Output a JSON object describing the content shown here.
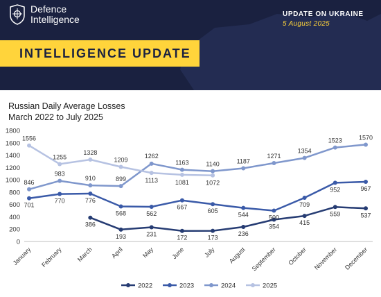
{
  "header": {
    "org_line1": "Defence",
    "org_line2": "Intelligence",
    "update_title": "UPDATE ON UKRAINE",
    "update_date": "5 August 2025",
    "banner_text": "INTELLIGENCE UPDATE",
    "banner_color": "#1a2140",
    "accent_color": "#ffd43b"
  },
  "chart_data": {
    "type": "line",
    "title": "Russian Daily Average Losses",
    "subtitle": "March 2022 to July 2025",
    "categories": [
      "January",
      "February",
      "March",
      "April",
      "May",
      "June",
      "July",
      "August",
      "September",
      "October",
      "November",
      "December"
    ],
    "ylim": [
      0,
      1800
    ],
    "yticks": [
      0,
      200,
      400,
      600,
      800,
      1000,
      1200,
      1400,
      1600,
      1800
    ],
    "grid": false,
    "legend_position": "bottom",
    "series": [
      {
        "name": "2022",
        "color": "#263c73",
        "values": [
          null,
          null,
          386,
          193,
          231,
          172,
          173,
          236,
          354,
          415,
          559,
          537
        ]
      },
      {
        "name": "2023",
        "color": "#3a5aa8",
        "values": [
          701,
          770,
          776,
          568,
          562,
          667,
          605,
          544,
          500,
          709,
          952,
          967
        ]
      },
      {
        "name": "2024",
        "color": "#7f97cc",
        "values": [
          846,
          983,
          910,
          899,
          1262,
          1163,
          1140,
          1187,
          1271,
          1354,
          1523,
          1570
        ]
      },
      {
        "name": "2025",
        "color": "#b6c2e2",
        "values": [
          1556,
          1255,
          1328,
          1209,
          1113,
          1081,
          1072,
          null,
          null,
          null,
          null,
          null
        ]
      }
    ]
  }
}
